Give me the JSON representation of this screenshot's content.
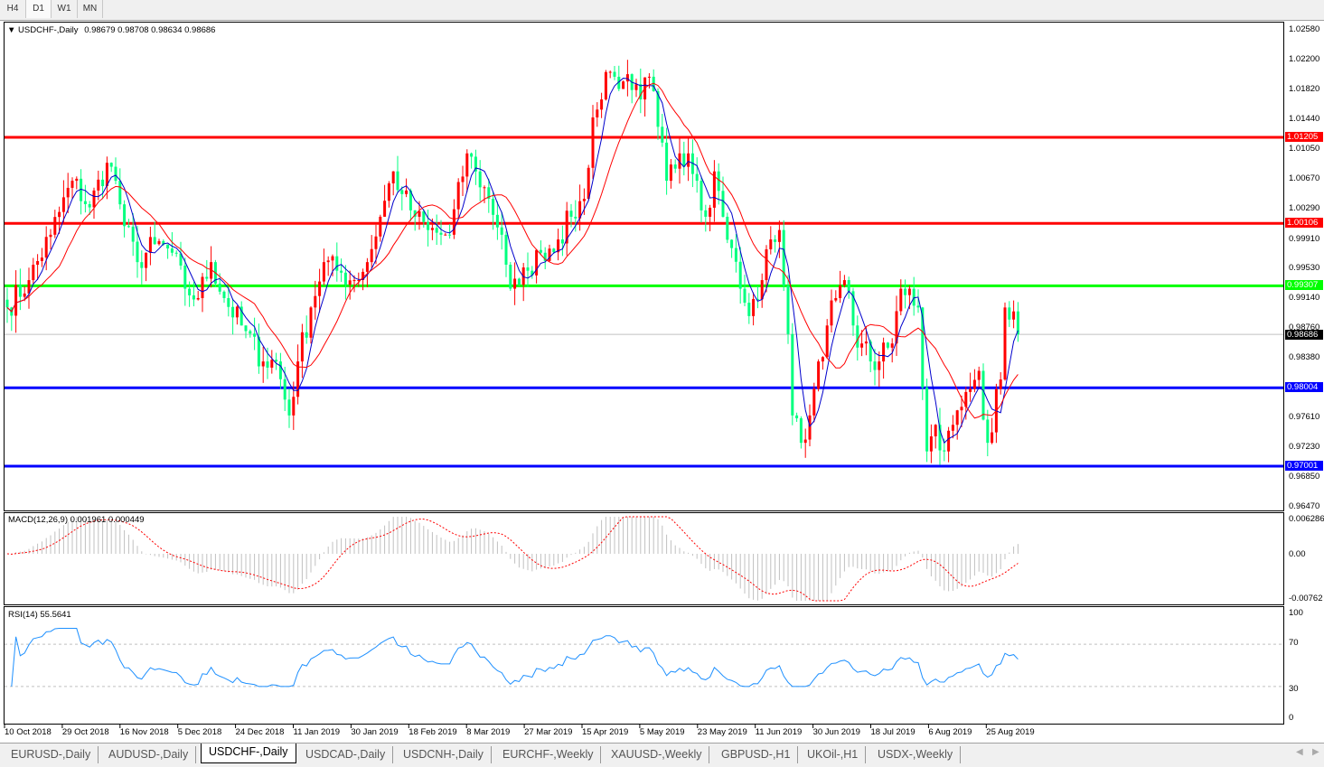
{
  "timeframes": [
    "H4",
    "D1",
    "W1",
    "MN"
  ],
  "active_timeframe": "D1",
  "chart": {
    "symbol_label": "USDCHF-,Daily",
    "ohlc": "0.98679 0.98708 0.98634 0.98686",
    "current_price": "0.98686"
  },
  "macd": {
    "title": "MACD(12,26,9) 0.001961 0.000449",
    "axis": [
      "0.006286",
      "0.00",
      "-0.00762"
    ]
  },
  "rsi": {
    "title": "RSI(14) 55.5641",
    "axis": [
      "100",
      "70",
      "30",
      "0"
    ]
  },
  "price_axis": [
    "1.02580",
    "1.02200",
    "1.01820",
    "1.01440",
    "1.01050",
    "1.00670",
    "1.00290",
    "0.99910",
    "0.99530",
    "0.99140",
    "0.98760",
    "0.98380",
    "0.97610",
    "0.97230",
    "0.96850",
    "0.96470"
  ],
  "levels": [
    {
      "value": "1.01205",
      "color": "#ff0000"
    },
    {
      "value": "1.00106",
      "color": "#ff0000"
    },
    {
      "value": "0.99307",
      "color": "#00ff00"
    },
    {
      "value": "0.98004",
      "color": "#0000ff"
    },
    {
      "value": "0.97001",
      "color": "#0000ff"
    }
  ],
  "dates": [
    "10 Oct 2018",
    "29 Oct 2018",
    "16 Nov 2018",
    "5 Dec 2018",
    "24 Dec 2018",
    "11 Jan 2019",
    "30 Jan 2019",
    "18 Feb 2019",
    "8 Mar 2019",
    "27 Mar 2019",
    "15 Apr 2019",
    "5 May 2019",
    "23 May 2019",
    "11 Jun 2019",
    "30 Jun 2019",
    "18 Jul 2019",
    "6 Aug 2019",
    "25 Aug 2019"
  ],
  "tabs": [
    "EURUSD-,Daily",
    "AUDUSD-,Daily",
    "USDCHF-,Daily",
    "USDCAD-,Daily",
    "USDCNH-,Daily",
    "EURCHF-,Weekly",
    "XAUUSD-,Weekly",
    "GBPUSD-,H1",
    "UKOil-,H1",
    "USDX-,Weekly"
  ],
  "active_tab": "USDCHF-,Daily",
  "colors": {
    "bull": "#ff0000",
    "bear": "#00ff7f",
    "ma_fast": "#0000cc",
    "ma_slow": "#ff0000",
    "rsi": "#1e90ff",
    "macd_hist": "#c0c0c0",
    "macd_signal": "#ff0000"
  },
  "chart_data": {
    "type": "candlestick",
    "symbol": "USDCHF-",
    "timeframe": "Daily",
    "date_range": [
      "10 Oct 2018",
      "30 Aug 2019"
    ],
    "ylim": [
      0.9647,
      1.0258
    ],
    "close_path": [
      0.9903,
      0.9938,
      0.9996,
      1.0065,
      1.0031,
      1.0088,
      1.0065,
      1.0007,
      0.9961,
      0.9984,
      0.9973,
      0.9927,
      0.9915,
      0.9961,
      0.9915,
      0.988,
      0.9834,
      0.9834,
      0.9765,
      0.9834,
      0.9903,
      0.9961,
      0.995,
      0.9938,
      0.9961,
      1.0019,
      1.0077,
      1.0048,
      1.0019,
      1.0002,
      0.9996,
      0.9996,
      1.01,
      1.0077,
      1.0042,
      0.9996,
      0.9927,
      0.9932,
      0.995,
      0.9973,
      0.999,
      1.0019,
      1.0042,
      1.0146,
      1.0169,
      1.0204,
      1.0198,
      1.0192,
      1.0181,
      1.0169,
      1.0198,
      1.0134,
      1.0065,
      1.01,
      1.01,
      1.0065,
      1.0019,
      1.0077,
      1.0019,
      0.9979,
      0.9927,
      0.9892,
      0.9938,
      0.999,
      1.0002,
      0.9869,
      0.9765,
      0.973,
      0.9765,
      0.9834,
      0.988,
      0.9915,
      0.9938,
      0.988,
      0.9857,
      0.9834,
      0.9834,
      0.9857,
      0.9927,
      0.9927,
      0.9903,
      0.9719,
      0.9753,
      0.9719,
      0.9753,
      0.9776,
      0.9799,
      0.9822,
      0.973,
      0.9811,
      0.9903,
      0.9898,
      0.98686
    ]
  }
}
